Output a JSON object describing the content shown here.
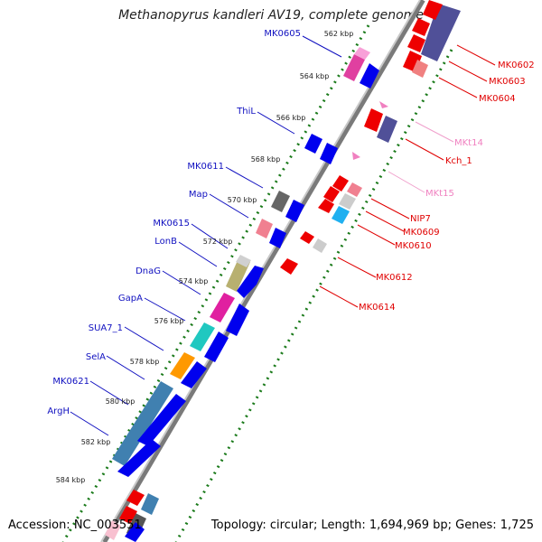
{
  "title": "Methanopyrus kandleri AV19, complete genome",
  "footer": {
    "accession": "Accession: NC_003551",
    "topology": "Topology: circular; Length: 1,694,969 bp; Genes: 1,725"
  },
  "colors": {
    "backbone": "#7a7a7a",
    "dots": "#1a7a1a",
    "left_label": "#1010c0",
    "right_label": "#e00000",
    "trna_label": "#f080c0",
    "minus_strand": "#0000ee",
    "plus_strand": "#ee0000"
  },
  "ticks": [
    "562 kbp",
    "564 kbp",
    "566 kbp",
    "568 kbp",
    "570 kbp",
    "572 kbp",
    "574 kbp",
    "576 kbp",
    "578 kbp",
    "580 kbp",
    "582 kbp",
    "584 kbp"
  ],
  "left_labels": [
    "MK0605",
    "ThiL",
    "MK0611",
    "Map",
    "MK0615",
    "LonB",
    "DnaG",
    "GapA",
    "SUA7_1",
    "SelA",
    "MK0621",
    "ArgH"
  ],
  "right_labels": [
    "MK0602",
    "MK0603",
    "MK0604",
    "MKt14",
    "Kch_1",
    "MKt15",
    "NIP7",
    "MK0609",
    "MK0610",
    "MK0612",
    "MK0614"
  ]
}
